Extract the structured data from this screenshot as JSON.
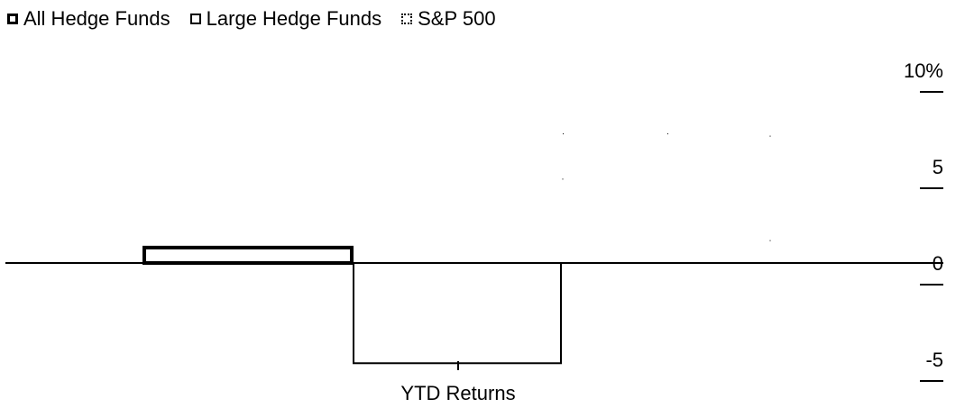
{
  "chart_data": {
    "type": "bar",
    "categories": [
      "YTD Returns"
    ],
    "series": [
      {
        "name": "All Hedge Funds",
        "values": [
          0.8
        ]
      },
      {
        "name": "Large Hedge Funds",
        "values": [
          -5.2
        ]
      },
      {
        "name": "S&P 500",
        "values": [
          6.7
        ]
      }
    ],
    "xlabel": "YTD Returns",
    "ylabel": "",
    "ylim": [
      -6,
      10
    ],
    "yticks": [
      "10%",
      "5",
      "0",
      "-5"
    ],
    "ytick_values": [
      10,
      5,
      0,
      -5
    ],
    "legend": "top-left",
    "grid": false
  }
}
